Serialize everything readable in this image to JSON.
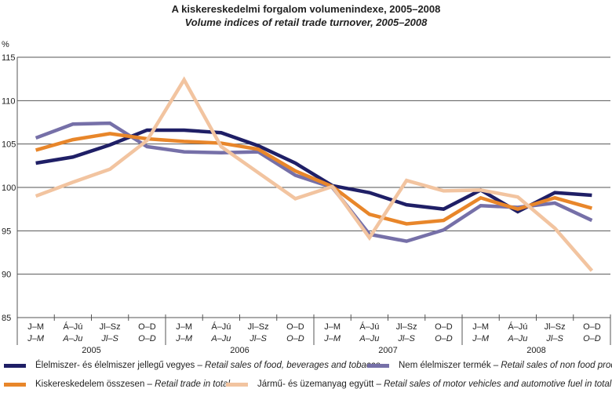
{
  "chart_data": {
    "type": "line",
    "title": "A kiskereskedelmi forgalom volumenindexe, 2005–2008",
    "subtitle": "Volume indices of retail trade turnover, 2005–2008",
    "ylabel": "%",
    "ylim": [
      85,
      115
    ],
    "yticks": [
      85,
      90,
      95,
      100,
      105,
      110,
      115
    ],
    "grid": true,
    "legend_position": "bottom",
    "quarters_hu": [
      "J–M",
      "Á–Jú",
      "Jl–Sz",
      "O–D"
    ],
    "quarters_en": [
      "J–M",
      "A–Ju",
      "Jl–S",
      "O–D"
    ],
    "years": [
      "2005",
      "2006",
      "2007",
      "2008"
    ],
    "series": [
      {
        "name_hu": "Élelmiszer- és élelmiszer jellegű vegyes",
        "name_en": "Retail sales of food, beverages and tobacco",
        "color": "#1f1f66",
        "values": [
          102.8,
          103.5,
          104.9,
          106.6,
          106.6,
          106.3,
          104.8,
          102.8,
          100.2,
          99.4,
          98.0,
          97.5,
          99.7,
          97.2,
          99.4,
          99.1
        ]
      },
      {
        "name_hu": "Nem élelmiszer termék",
        "name_en": "Retail sales of non food products",
        "color": "#7670a8",
        "values": [
          105.7,
          107.3,
          107.4,
          104.7,
          104.1,
          104.0,
          104.1,
          101.4,
          100.0,
          94.6,
          93.8,
          95.1,
          97.9,
          97.7,
          98.2,
          96.2
        ]
      },
      {
        "name_hu": "Kiskereskedelem összesen",
        "name_en": "Retail trade in total",
        "color": "#e8862a",
        "values": [
          104.3,
          105.5,
          106.2,
          105.6,
          105.3,
          105.1,
          104.4,
          101.9,
          100.1,
          96.9,
          95.8,
          96.2,
          98.8,
          97.5,
          98.8,
          97.6
        ]
      },
      {
        "name_hu": "Jármű- és üzemanyag együtt",
        "name_en": "Retail sales of motor vehicles and automotive fuel in total",
        "color": "#f2c4a0",
        "values": [
          99.0,
          100.6,
          102.1,
          105.4,
          112.4,
          104.7,
          101.7,
          98.7,
          100.1,
          94.2,
          100.8,
          99.6,
          99.7,
          98.9,
          95.3,
          90.4
        ]
      }
    ]
  }
}
